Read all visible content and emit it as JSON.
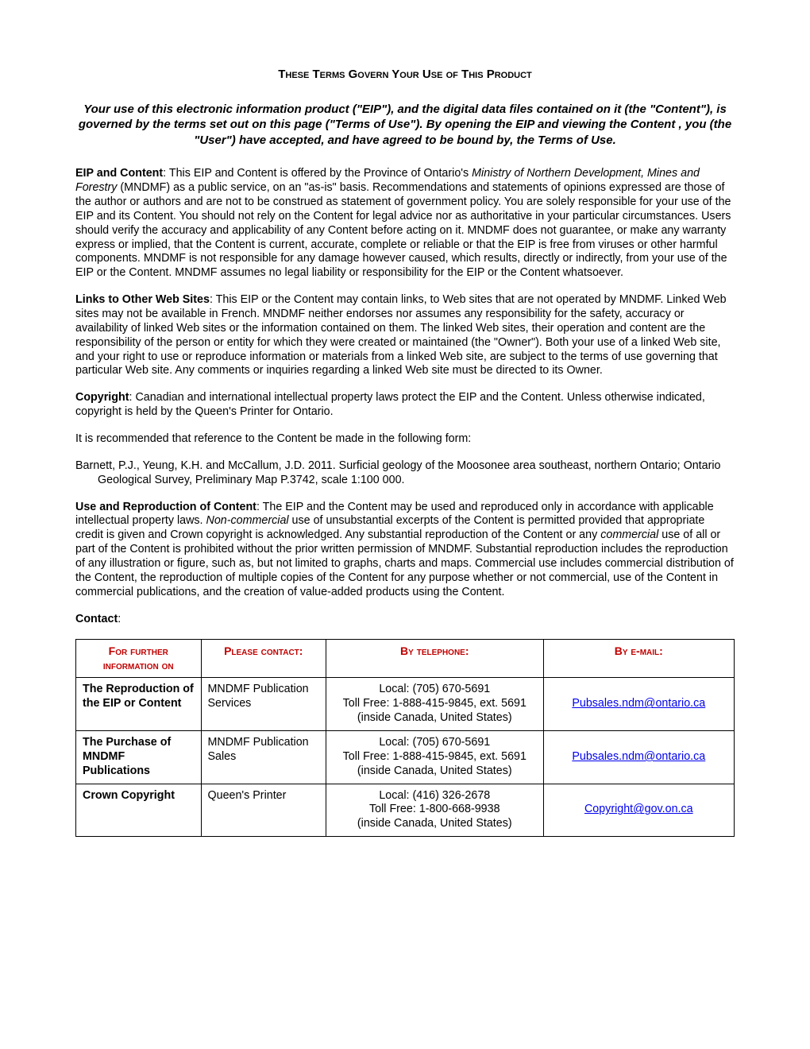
{
  "title": "These Terms Govern Your Use of This Product",
  "intro": "Your use of this electronic information product (\"EIP\"), and the digital data files contained on it (the \"Content\"), is governed by the terms set out on this page (\"Terms of Use\"). By opening the EIP and viewing the Content , you (the \"User\") have accepted, and have agreed to be bound by, the Terms of Use.",
  "sections": {
    "eip_heading": "EIP and Content",
    "eip_body_pre": ":  This EIP and Content is offered by the Province of Ontario's ",
    "eip_ministry": "Ministry of Northern Development, Mines and Forestry",
    "eip_body_post": " (MNDMF) as a public service, on an \"as-is\" basis. Recommendations and statements of opinions expressed are those of the author or authors and are not to be construed as statement of government policy. You are solely responsible for your use of the EIP and its Content. You should not rely on the Content for legal advice nor as authoritative in your particular circumstances. Users should verify the accuracy and applicability of any Content before acting on it. MNDMF does not guarantee, or make any warranty express or implied, that the Content is current, accurate, complete or reliable or that the EIP is free from viruses or other harmful components. MNDMF is not responsible for any damage however caused, which results, directly or indirectly, from your use of the EIP or the Content. MNDMF assumes no legal liability or responsibility for the EIP or the Content whatsoever.",
    "links_heading": "Links to Other Web Sites",
    "links_body": ":  This EIP or the Content may contain links, to Web sites that are not operated by MNDMF. Linked Web sites may not be available in French. MNDMF neither endorses nor assumes any responsibility for the safety, accuracy or availability of linked Web sites or the information contained on them. The linked Web sites, their operation and content are the responsibility of the person or entity for which they were created or maintained (the \"Owner\"). Both your use of a linked Web site, and your right to use or reproduce information or materials from a linked Web site, are subject to the terms of use governing that particular Web site. Any comments or inquiries regarding a linked Web site must be directed to its Owner.",
    "copyright_heading": "Copyright",
    "copyright_body": ":  Canadian and international intellectual property laws protect the EIP and the Content. Unless otherwise indicated, copyright is held by the Queen's Printer for Ontario.",
    "recommend": "It is recommended that reference to the Content be made in the following form:",
    "citation": "Barnett, P.J., Yeung, K.H. and McCallum, J.D. 2011. Surficial geology of the Moosonee area southeast, northern Ontario; Ontario Geological Survey, Preliminary Map P.3742, scale 1:100 000.",
    "use_heading": "Use and Reproduction of Content",
    "use_body_1": ": The EIP and the Content may be used and reproduced only in accordance with applicable intellectual property laws. ",
    "use_noncom": "Non-commercial",
    "use_body_2": " use of unsubstantial excerpts of the Content is permitted provided that appropriate credit is given and Crown copyright is acknowledged. Any substantial reproduction of the Content or any ",
    "use_com": "commercial",
    "use_body_3": " use of all or part of the Content is prohibited without the prior written permission of MNDMF. Substantial reproduction includes the reproduction of any illustration or figure, such as, but not limited to graphs, charts and maps. Commercial use includes commercial distribution of the Content, the reproduction of multiple copies of the Content for any purpose whether or not commercial, use of the Content in commercial publications, and the creation of value-added products using the Content.",
    "contact_heading": "Contact"
  },
  "table": {
    "header_color": "#c00000",
    "link_color": "#0000ee",
    "headers": {
      "info": "For further information on",
      "contact": "Please contact:",
      "phone": "By telephone:",
      "email": "By e-mail:"
    },
    "rows": [
      {
        "topic": "The Reproduction of the EIP or Content",
        "contact": "MNDMF Publication Services",
        "phone_local": "Local: (705) 670-5691",
        "phone_tollfree": "Toll Free: 1-888-415-9845, ext. 5691",
        "phone_note": "(inside Canada, United States)",
        "email": "Pubsales.ndm@ontario.ca"
      },
      {
        "topic": "The Purchase of MNDMF Publications",
        "contact": "MNDMF Publication Sales",
        "phone_local": "Local: (705) 670-5691",
        "phone_tollfree": "Toll Free: 1-888-415-9845, ext. 5691",
        "phone_note": "(inside Canada, United States)",
        "email": "Pubsales.ndm@ontario.ca"
      },
      {
        "topic": "Crown Copyright",
        "contact": "Queen's Printer",
        "phone_local": "Local: (416) 326-2678",
        "phone_tollfree": "Toll Free: 1-800-668-9938",
        "phone_note": "(inside Canada, United States)",
        "email": "Copyright@gov.on.ca"
      }
    ]
  }
}
